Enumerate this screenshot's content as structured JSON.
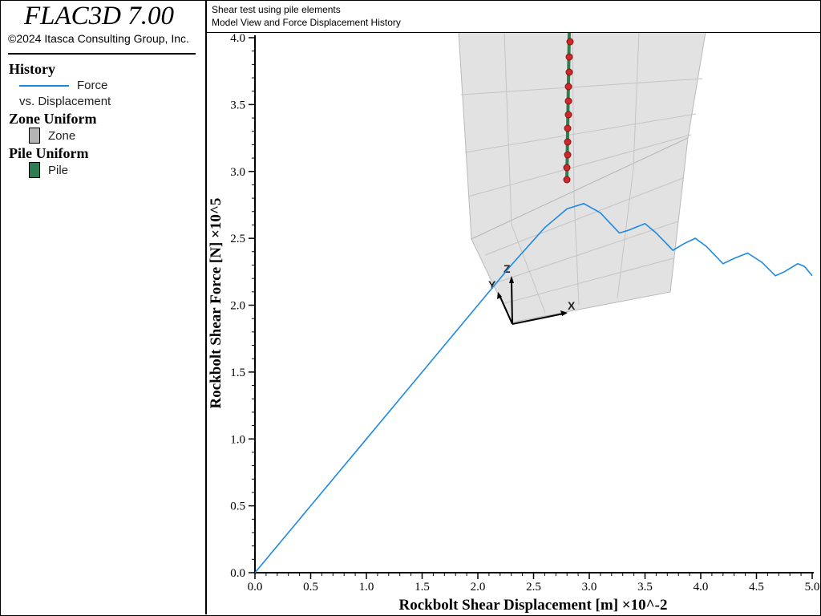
{
  "app": {
    "title": "FLAC3D 7.00",
    "copyright": "©2024 Itasca Consulting Group, Inc."
  },
  "header": {
    "line1": "Shear test using pile elements",
    "line2": "Model View and Force Displacement History"
  },
  "legend": {
    "history_heading": "History",
    "history_label": "Force",
    "history_sub": "vs. Displacement",
    "history_color": "#1e88e5",
    "zone_heading": "Zone Uniform",
    "zone_label": "Zone",
    "zone_color": "#b4b4b4",
    "pile_heading": "Pile Uniform",
    "pile_label": "Pile",
    "pile_color": "#2e7d4f"
  },
  "axes_triad": {
    "x": "X",
    "y": "Y",
    "z": "Z"
  },
  "chart_data": {
    "type": "line",
    "xlabel": "Rockbolt Shear Displacement [m] ×10^-2",
    "ylabel": "Rockbolt Shear Force [N] ×10^5",
    "xlim": [
      0,
      5
    ],
    "ylim": [
      0,
      4
    ],
    "x_ticks": [
      "0.0",
      "0.5",
      "1.0",
      "1.5",
      "2.0",
      "2.5",
      "3.0",
      "3.5",
      "4.0",
      "4.5",
      "5.0"
    ],
    "y_ticks": [
      "0.0",
      "0.5",
      "1.0",
      "1.5",
      "2.0",
      "2.5",
      "3.0",
      "3.5",
      "4.0"
    ],
    "series": [
      {
        "name": "Force vs. Displacement",
        "color": "#1e88e5",
        "x": [
          0,
          0.5,
          1.0,
          1.5,
          2.0,
          2.3,
          2.6,
          2.8,
          2.95,
          3.1,
          3.27,
          3.35,
          3.5,
          3.6,
          3.75,
          3.85,
          3.95,
          4.05,
          4.2,
          4.3,
          4.42,
          4.55,
          4.67,
          4.75,
          4.87,
          4.93,
          5.0
        ],
        "y": [
          0,
          0.5,
          1.0,
          1.5,
          2.0,
          2.3,
          2.58,
          2.72,
          2.76,
          2.69,
          2.54,
          2.56,
          2.61,
          2.54,
          2.41,
          2.46,
          2.5,
          2.44,
          2.31,
          2.35,
          2.39,
          2.32,
          2.22,
          2.25,
          2.31,
          2.29,
          2.22
        ]
      }
    ]
  }
}
